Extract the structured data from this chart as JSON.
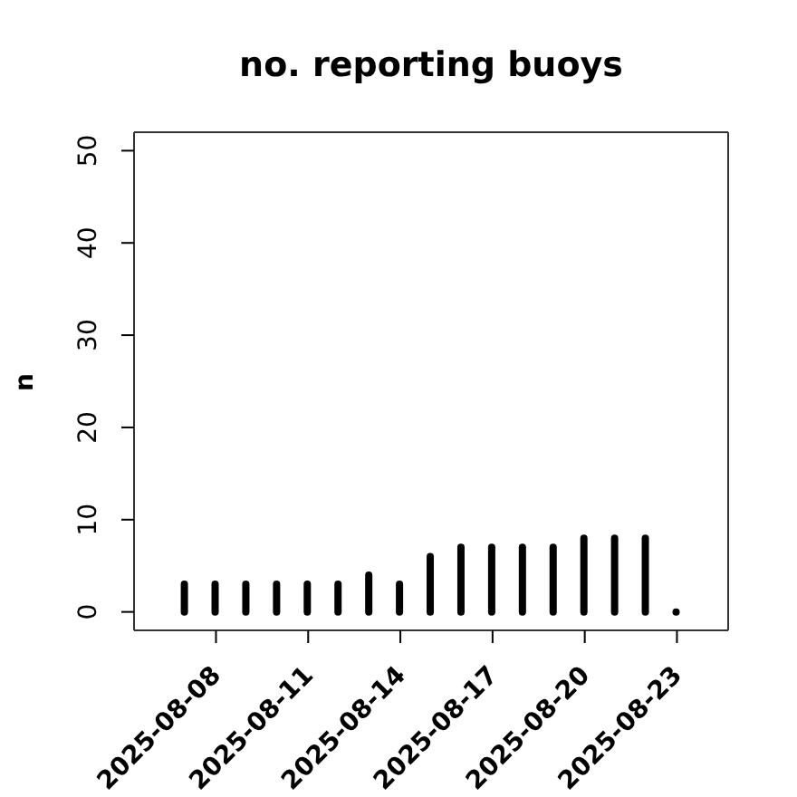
{
  "chart_data": {
    "type": "bar",
    "title": "no. reporting buoys",
    "ylabel": "n",
    "x": [
      "2025-08-07",
      "2025-08-08",
      "2025-08-09",
      "2025-08-10",
      "2025-08-11",
      "2025-08-12",
      "2025-08-13",
      "2025-08-14",
      "2025-08-15",
      "2025-08-16",
      "2025-08-17",
      "2025-08-18",
      "2025-08-19",
      "2025-08-20",
      "2025-08-21",
      "2025-08-22",
      "2025-08-23"
    ],
    "values": [
      3,
      3,
      3,
      3,
      3,
      3,
      4,
      3,
      6,
      7,
      7,
      7,
      7,
      8,
      8,
      8,
      0
    ],
    "color": "#000000",
    "xlim": [
      "2025-08-05T08:00",
      "2025-08-24T16:00"
    ],
    "ylim": [
      -2,
      52
    ],
    "xticks": [
      "2025-08-08",
      "2025-08-11",
      "2025-08-14",
      "2025-08-17",
      "2025-08-20",
      "2025-08-23"
    ],
    "yticks": [
      0,
      10,
      20,
      30,
      40,
      50
    ]
  }
}
